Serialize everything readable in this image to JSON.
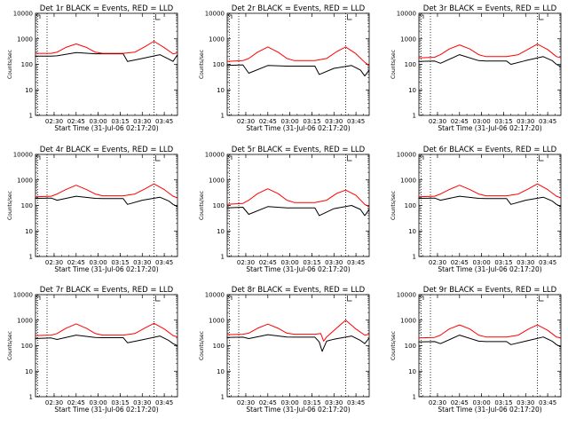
{
  "colors": {
    "events": "#000000",
    "lld": "#ff0000",
    "background": "#ffffff"
  },
  "chart_data": [
    {
      "type": "line",
      "title": "Det 1r BLACK = Events, RED = LLD",
      "xlabel": "Start Time (31-Jul-06 02:17:20)",
      "ylabel": "Counts/sec",
      "x_ticks": [
        "02:30",
        "02:45",
        "03:00",
        "03:15",
        "03:30",
        "03:45"
      ],
      "y_ticks": [
        "1",
        "10",
        "100",
        "1000",
        "10000"
      ],
      "xlim": [
        "02:17:20",
        "03:54"
      ],
      "ylim": [
        1,
        10000
      ],
      "yscale": "log",
      "marker": "03:38",
      "series": [
        {
          "name": "Events",
          "color": "#000000",
          "x": [
            "02:17",
            "02:28",
            "02:32",
            "02:45",
            "02:58",
            "03:03",
            "03:17",
            "03:20",
            "03:30",
            "03:42",
            "03:48",
            "03:51",
            "03:54"
          ],
          "y": [
            210,
            210,
            215,
            290,
            260,
            260,
            260,
            130,
            170,
            240,
            160,
            130,
            240
          ]
        },
        {
          "name": "LLD",
          "color": "#ff0000",
          "x": [
            "02:17",
            "02:28",
            "02:32",
            "02:38",
            "02:45",
            "02:52",
            "02:58",
            "03:03",
            "03:17",
            "03:25",
            "03:32",
            "03:38",
            "03:45",
            "03:51",
            "03:54"
          ],
          "y": [
            270,
            270,
            300,
            460,
            630,
            460,
            300,
            270,
            270,
            300,
            500,
            800,
            450,
            260,
            280
          ]
        }
      ]
    },
    {
      "type": "line",
      "title": "Det 2r BLACK = Events, RED = LLD",
      "xlabel": "Start Time (31-Jul-06 02:17:20)",
      "ylabel": "Counts/sec",
      "x_ticks": [
        "02:30",
        "02:45",
        "03:00",
        "03:15",
        "03:30",
        "03:45"
      ],
      "y_ticks": [
        "1",
        "10",
        "100",
        "1000",
        "10000"
      ],
      "xlim": [
        "02:17:20",
        "03:54"
      ],
      "ylim": [
        1,
        10000
      ],
      "yscale": "log",
      "marker": "03:38",
      "series": [
        {
          "name": "Events",
          "color": "#000000",
          "x": [
            "02:17",
            "02:28",
            "02:32",
            "02:45",
            "02:58",
            "03:03",
            "03:17",
            "03:20",
            "03:30",
            "03:42",
            "03:48",
            "03:51",
            "03:54"
          ],
          "y": [
            90,
            95,
            45,
            90,
            85,
            85,
            85,
            40,
            70,
            90,
            60,
            35,
            60
          ]
        },
        {
          "name": "LLD",
          "color": "#ff0000",
          "x": [
            "02:17",
            "02:28",
            "02:32",
            "02:38",
            "02:45",
            "02:52",
            "02:58",
            "03:03",
            "03:17",
            "03:25",
            "03:32",
            "03:38",
            "03:45",
            "03:51",
            "03:54"
          ],
          "y": [
            130,
            140,
            170,
            300,
            480,
            300,
            170,
            140,
            140,
            170,
            320,
            480,
            260,
            120,
            90
          ]
        }
      ]
    },
    {
      "type": "line",
      "title": "Det 3r BLACK = Events, RED = LLD",
      "xlabel": "Start Time (31-Jul-06 02:17:20)",
      "ylabel": "Counts/sec",
      "x_ticks": [
        "02:30",
        "02:45",
        "03:00",
        "03:15",
        "03:30",
        "03:45"
      ],
      "y_ticks": [
        "1",
        "10",
        "100",
        "1000",
        "10000"
      ],
      "xlim": [
        "02:17:20",
        "03:54"
      ],
      "ylim": [
        1,
        10000
      ],
      "yscale": "log",
      "marker": "03:38",
      "series": [
        {
          "name": "Events",
          "color": "#000000",
          "x": [
            "02:17",
            "02:28",
            "02:32",
            "02:45",
            "02:58",
            "03:03",
            "03:17",
            "03:20",
            "03:30",
            "03:42",
            "03:48",
            "03:51",
            "03:54"
          ],
          "y": [
            130,
            135,
            110,
            240,
            140,
            135,
            135,
            100,
            140,
            200,
            140,
            100,
            80
          ]
        },
        {
          "name": "LLD",
          "color": "#ff0000",
          "x": [
            "02:17",
            "02:28",
            "02:32",
            "02:38",
            "02:45",
            "02:52",
            "02:58",
            "03:03",
            "03:17",
            "03:25",
            "03:32",
            "03:38",
            "03:45",
            "03:51",
            "03:54"
          ],
          "y": [
            180,
            190,
            240,
            400,
            580,
            400,
            240,
            200,
            200,
            240,
            400,
            620,
            380,
            200,
            180
          ]
        }
      ]
    },
    {
      "type": "line",
      "title": "Det 4r BLACK = Events, RED = LLD",
      "xlabel": "Start Time (31-Jul-06 02:17:20)",
      "ylabel": "Counts/sec",
      "x_ticks": [
        "02:30",
        "02:45",
        "03:00",
        "03:15",
        "03:30",
        "03:45"
      ],
      "y_ticks": [
        "1",
        "10",
        "100",
        "1000",
        "10000"
      ],
      "xlim": [
        "02:17:20",
        "03:54"
      ],
      "ylim": [
        1,
        10000
      ],
      "yscale": "log",
      "marker": "03:38",
      "series": [
        {
          "name": "Events",
          "color": "#000000",
          "x": [
            "02:17",
            "02:28",
            "02:32",
            "02:45",
            "02:58",
            "03:03",
            "03:17",
            "03:20",
            "03:30",
            "03:42",
            "03:48",
            "03:51",
            "03:54"
          ],
          "y": [
            190,
            195,
            160,
            230,
            190,
            185,
            185,
            110,
            160,
            210,
            150,
            110,
            90
          ]
        },
        {
          "name": "LLD",
          "color": "#ff0000",
          "x": [
            "02:17",
            "02:28",
            "02:32",
            "02:38",
            "02:45",
            "02:52",
            "02:58",
            "03:03",
            "03:17",
            "03:25",
            "03:32",
            "03:38",
            "03:45",
            "03:51",
            "03:54"
          ],
          "y": [
            220,
            230,
            280,
            420,
            620,
            420,
            280,
            240,
            240,
            280,
            450,
            700,
            420,
            230,
            200
          ]
        }
      ]
    },
    {
      "type": "line",
      "title": "Det 5r BLACK = Events, RED = LLD",
      "xlabel": "Start Time (31-Jul-06 02:17:20)",
      "ylabel": "Counts/sec",
      "x_ticks": [
        "02:30",
        "02:45",
        "03:00",
        "03:15",
        "03:30",
        "03:45"
      ],
      "y_ticks": [
        "1",
        "10",
        "100",
        "1000",
        "10000"
      ],
      "xlim": [
        "02:17:20",
        "03:54"
      ],
      "ylim": [
        1,
        10000
      ],
      "yscale": "log",
      "marker": "03:38",
      "series": [
        {
          "name": "Events",
          "color": "#000000",
          "x": [
            "02:17",
            "02:28",
            "02:32",
            "02:45",
            "02:58",
            "03:03",
            "03:17",
            "03:20",
            "03:30",
            "03:42",
            "03:48",
            "03:51",
            "03:54"
          ],
          "y": [
            80,
            85,
            45,
            90,
            80,
            80,
            80,
            40,
            75,
            100,
            70,
            40,
            70
          ]
        },
        {
          "name": "LLD",
          "color": "#ff0000",
          "x": [
            "02:17",
            "02:28",
            "02:32",
            "02:38",
            "02:45",
            "02:52",
            "02:58",
            "03:03",
            "03:17",
            "03:25",
            "03:32",
            "03:38",
            "03:45",
            "03:51",
            "03:54"
          ],
          "y": [
            110,
            120,
            160,
            290,
            450,
            290,
            160,
            130,
            130,
            160,
            300,
            400,
            250,
            110,
            90
          ]
        }
      ]
    },
    {
      "type": "line",
      "title": "Det 6r BLACK = Events, RED = LLD",
      "xlabel": "Start Time (31-Jul-06 02:17:20)",
      "ylabel": "Counts/sec",
      "x_ticks": [
        "02:30",
        "02:45",
        "03:00",
        "03:15",
        "03:30",
        "03:45"
      ],
      "y_ticks": [
        "1",
        "10",
        "100",
        "1000",
        "10000"
      ],
      "xlim": [
        "02:17:20",
        "03:54"
      ],
      "ylim": [
        1,
        10000
      ],
      "yscale": "log",
      "marker": "03:38",
      "series": [
        {
          "name": "Events",
          "color": "#000000",
          "x": [
            "02:17",
            "02:28",
            "02:32",
            "02:45",
            "02:58",
            "03:03",
            "03:17",
            "03:20",
            "03:30",
            "03:42",
            "03:48",
            "03:51",
            "03:54"
          ],
          "y": [
            190,
            195,
            160,
            230,
            190,
            185,
            185,
            110,
            160,
            210,
            150,
            110,
            90
          ]
        },
        {
          "name": "LLD",
          "color": "#ff0000",
          "x": [
            "02:17",
            "02:28",
            "02:32",
            "02:38",
            "02:45",
            "02:52",
            "02:58",
            "03:03",
            "03:17",
            "03:25",
            "03:32",
            "03:38",
            "03:45",
            "03:51",
            "03:54"
          ],
          "y": [
            220,
            230,
            280,
            420,
            620,
            420,
            280,
            240,
            240,
            280,
            450,
            700,
            420,
            230,
            200
          ]
        }
      ]
    },
    {
      "type": "line",
      "title": "Det 7r BLACK = Events, RED = LLD",
      "xlabel": "Start Time (31-Jul-06 02:17:20)",
      "ylabel": "Counts/sec",
      "x_ticks": [
        "02:30",
        "02:45",
        "03:00",
        "03:15",
        "03:30",
        "03:45"
      ],
      "y_ticks": [
        "1",
        "10",
        "100",
        "1000",
        "10000"
      ],
      "xlim": [
        "02:17:20",
        "03:54"
      ],
      "ylim": [
        1,
        10000
      ],
      "yscale": "log",
      "marker": "03:38",
      "series": [
        {
          "name": "Events",
          "color": "#000000",
          "x": [
            "02:17",
            "02:28",
            "02:32",
            "02:45",
            "02:58",
            "03:03",
            "03:17",
            "03:20",
            "03:30",
            "03:42",
            "03:48",
            "03:51",
            "03:54"
          ],
          "y": [
            190,
            200,
            175,
            260,
            210,
            205,
            205,
            130,
            170,
            240,
            160,
            120,
            100
          ]
        },
        {
          "name": "LLD",
          "color": "#ff0000",
          "x": [
            "02:17",
            "02:28",
            "02:32",
            "02:38",
            "02:45",
            "02:52",
            "02:58",
            "03:03",
            "03:17",
            "03:25",
            "03:32",
            "03:38",
            "03:45",
            "03:51",
            "03:54"
          ],
          "y": [
            250,
            260,
            300,
            480,
            720,
            480,
            300,
            260,
            260,
            300,
            500,
            750,
            450,
            250,
            220
          ]
        }
      ]
    },
    {
      "type": "line",
      "title": "Det 8r BLACK = Events, RED = LLD",
      "xlabel": "Start Time (31-Jul-06 02:17:20)",
      "ylabel": "Counts/sec",
      "x_ticks": [
        "02:30",
        "02:45",
        "03:00",
        "03:15",
        "03:30",
        "03:45"
      ],
      "y_ticks": [
        "1",
        "10",
        "100",
        "1000",
        "10000"
      ],
      "xlim": [
        "02:17:20",
        "03:54"
      ],
      "ylim": [
        1,
        10000
      ],
      "yscale": "log",
      "marker": "03:38",
      "series": [
        {
          "name": "Events",
          "color": "#000000",
          "x": [
            "02:17",
            "02:28",
            "02:32",
            "02:45",
            "02:58",
            "03:03",
            "03:17",
            "03:20",
            "03:22",
            "03:25",
            "03:30",
            "03:42",
            "03:48",
            "03:51",
            "03:54"
          ],
          "y": [
            210,
            215,
            190,
            270,
            220,
            215,
            215,
            140,
            60,
            150,
            180,
            240,
            160,
            120,
            200
          ]
        },
        {
          "name": "LLD",
          "color": "#ff0000",
          "x": [
            "02:17",
            "02:28",
            "02:32",
            "02:38",
            "02:45",
            "02:52",
            "02:58",
            "03:03",
            "03:17",
            "03:21",
            "03:23",
            "03:25",
            "03:32",
            "03:38",
            "03:45",
            "03:51",
            "03:54"
          ],
          "y": [
            270,
            280,
            310,
            480,
            700,
            480,
            310,
            280,
            280,
            300,
            150,
            220,
            500,
            1000,
            450,
            260,
            280
          ]
        }
      ]
    },
    {
      "type": "line",
      "title": "Det 9r BLACK = Events, RED = LLD",
      "xlabel": "Start Time (31-Jul-06 02:17:20)",
      "ylabel": "Counts/sec",
      "x_ticks": [
        "02:30",
        "02:45",
        "03:00",
        "03:15",
        "03:30",
        "03:45"
      ],
      "y_ticks": [
        "1",
        "10",
        "100",
        "1000",
        "10000"
      ],
      "xlim": [
        "02:17:20",
        "03:54"
      ],
      "ylim": [
        1,
        10000
      ],
      "yscale": "log",
      "marker": "03:38",
      "series": [
        {
          "name": "Events",
          "color": "#000000",
          "x": [
            "02:17",
            "02:28",
            "02:32",
            "02:45",
            "02:58",
            "03:03",
            "03:17",
            "03:20",
            "03:30",
            "03:42",
            "03:48",
            "03:51",
            "03:54"
          ],
          "y": [
            140,
            145,
            120,
            260,
            150,
            145,
            145,
            110,
            150,
            220,
            150,
            110,
            90
          ]
        },
        {
          "name": "LLD",
          "color": "#ff0000",
          "x": [
            "02:17",
            "02:28",
            "02:32",
            "02:38",
            "02:45",
            "02:52",
            "02:58",
            "03:03",
            "03:17",
            "03:25",
            "03:32",
            "03:38",
            "03:45",
            "03:51",
            "03:54"
          ],
          "y": [
            200,
            210,
            260,
            450,
            650,
            450,
            260,
            220,
            220,
            260,
            450,
            650,
            400,
            220,
            200
          ]
        }
      ]
    }
  ]
}
